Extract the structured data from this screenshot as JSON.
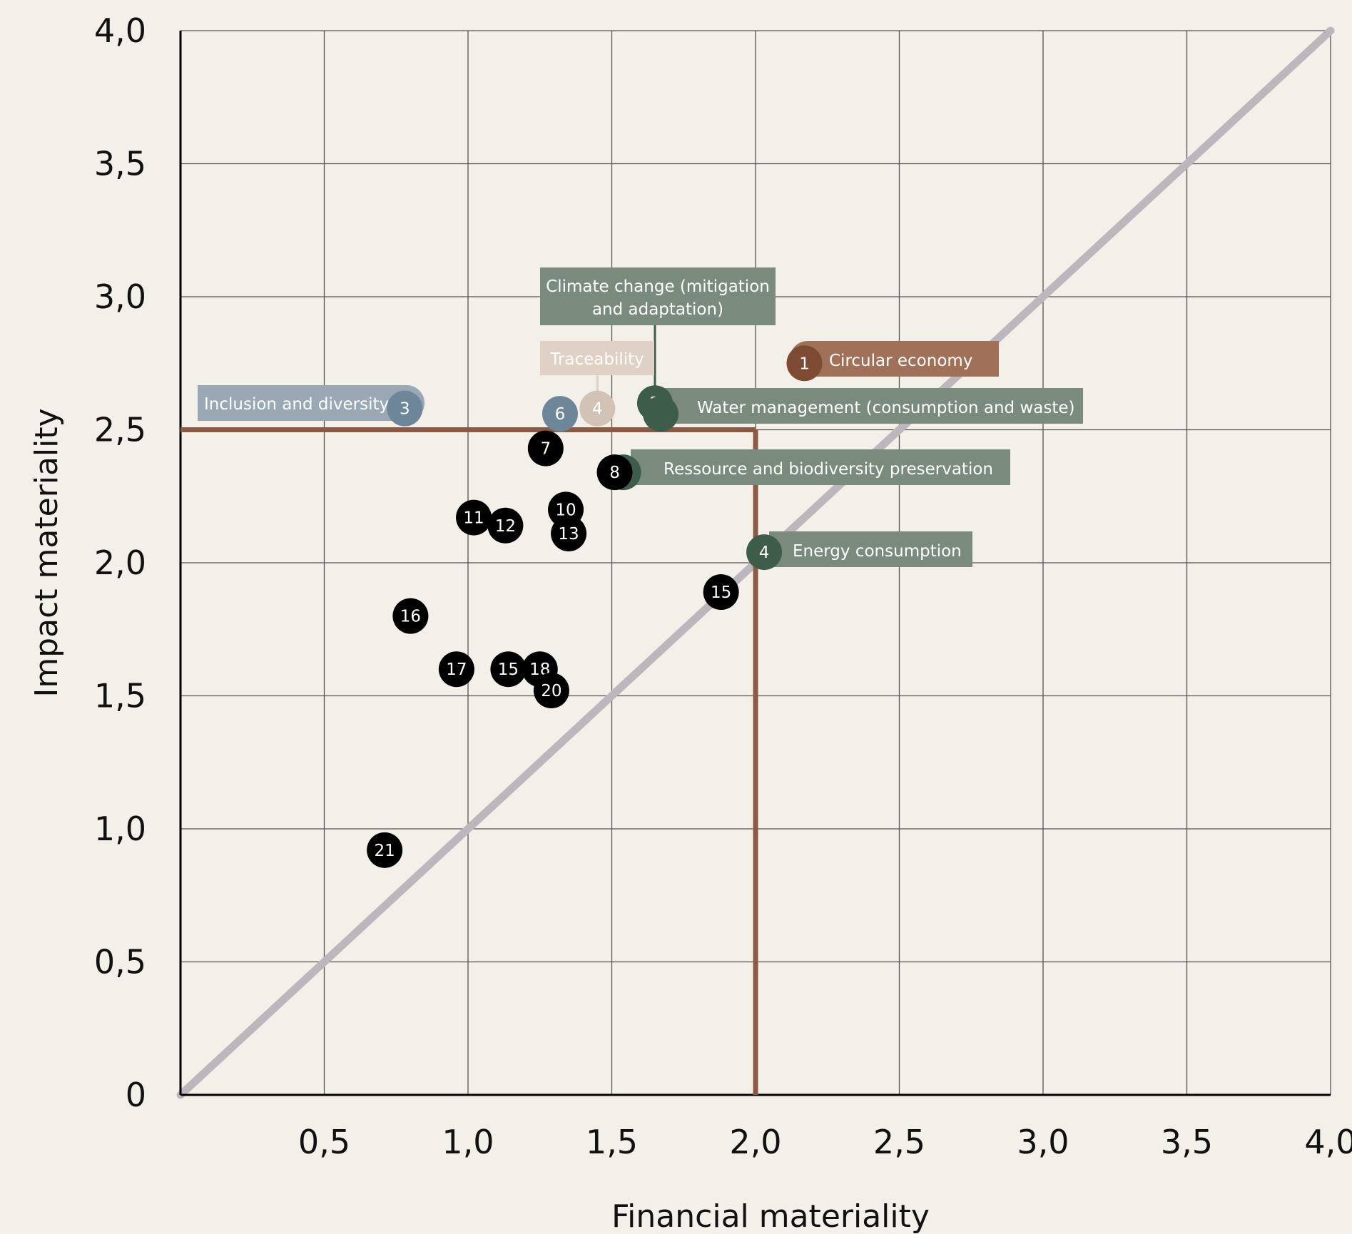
{
  "chart_data": {
    "type": "scatter",
    "xlabel": "Financial materiality",
    "ylabel": "Impact materiality",
    "xlim": [
      0,
      4
    ],
    "ylim": [
      0,
      4
    ],
    "x_ticks": [
      "0,5",
      "1,0",
      "1,5",
      "2,0",
      "2,5",
      "3,0",
      "3,5",
      "4,0"
    ],
    "y_ticks": [
      "0",
      "0,5",
      "1,0",
      "1,5",
      "2,0",
      "2,5",
      "3,0",
      "3,5",
      "4,0"
    ],
    "grid": true,
    "reference_line": {
      "from": [
        0,
        0
      ],
      "to": [
        4,
        4
      ],
      "color": "#bdb6bd"
    },
    "threshold": {
      "x": 2.0,
      "y": 2.5,
      "color": "#8b5a44"
    },
    "colors": {
      "brown": "#a07058",
      "brown_dot": "#7e4a33",
      "green": "#7a8a7c",
      "green_dot": "#3e5c4a",
      "blue": "#9aa8b6",
      "blue_dot": "#6e869a",
      "beige": "#dfd1c6",
      "beige_dot": "#d3c3b7",
      "black": "#000000"
    },
    "highlighted": [
      {
        "number": "1",
        "label": "Circular economy",
        "x": 2.17,
        "y": 2.75,
        "color": "brown"
      },
      {
        "number": "2",
        "label": "Climate change (mitigation and adaptation)",
        "label_lines": [
          "Climate change (mitigation",
          "and adaptation)"
        ],
        "x": 1.65,
        "y": 2.6,
        "color": "green"
      },
      {
        "number": "",
        "label": "Water management (consumption and waste)",
        "x": 1.67,
        "y": 2.56,
        "color": "green"
      },
      {
        "number": "3",
        "label": "Inclusion and diversity",
        "x": 0.78,
        "y": 2.58,
        "color": "blue"
      },
      {
        "number": "4",
        "label": "Traceability",
        "x": 1.45,
        "y": 2.58,
        "color": "beige"
      },
      {
        "number": "6",
        "label": "",
        "x": 1.32,
        "y": 2.56,
        "color": "blue"
      },
      {
        "number": "",
        "label": "Ressource and biodiversity preservation",
        "x": 1.54,
        "y": 2.34,
        "color": "green"
      },
      {
        "number": "4",
        "label": "Energy consumption",
        "x": 2.03,
        "y": 2.04,
        "color": "green"
      }
    ],
    "points": [
      {
        "number": "7",
        "x": 1.27,
        "y": 2.43
      },
      {
        "number": "8",
        "x": 1.51,
        "y": 2.34
      },
      {
        "number": "10",
        "x": 1.34,
        "y": 2.2
      },
      {
        "number": "11",
        "x": 1.02,
        "y": 2.17
      },
      {
        "number": "12",
        "x": 1.13,
        "y": 2.14
      },
      {
        "number": "13",
        "x": 1.35,
        "y": 2.11
      },
      {
        "number": "15",
        "x": 1.88,
        "y": 1.89
      },
      {
        "number": "16",
        "x": 0.8,
        "y": 1.8
      },
      {
        "number": "17",
        "x": 0.96,
        "y": 1.6
      },
      {
        "number": "15",
        "x": 1.14,
        "y": 1.6
      },
      {
        "number": "18",
        "x": 1.25,
        "y": 1.6
      },
      {
        "number": "20",
        "x": 1.29,
        "y": 1.52
      },
      {
        "number": "21",
        "x": 0.71,
        "y": 0.92
      }
    ]
  }
}
